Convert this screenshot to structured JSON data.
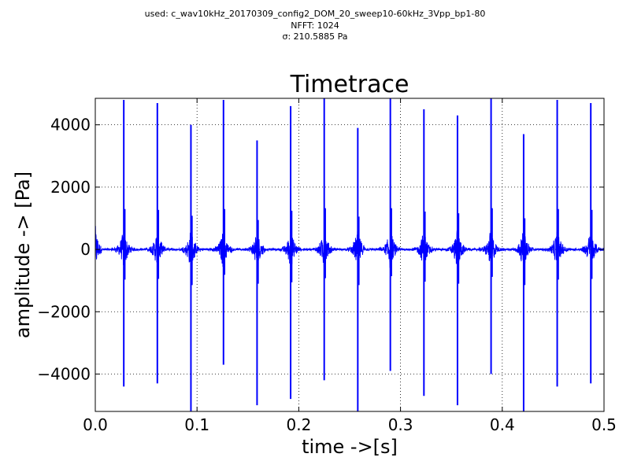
{
  "header": {
    "line1": "used: c_wav10kHz_20170309_config2_DOM_20_sweep10-60kHz_3Vpp_bp1-80",
    "line2": "NFFT: 1024",
    "line3": "σ: 210.5885 Pa"
  },
  "chart_data": {
    "type": "line",
    "title": "Timetrace",
    "xlabel": "time ->[s]",
    "ylabel": "amplitude -> [Pa]",
    "xlim": [
      0.0,
      0.5
    ],
    "ylim": [
      -5200,
      4850
    ],
    "grid": true,
    "line_color": "#0000ff",
    "xticks": [
      {
        "value": 0.0,
        "label": "0.0"
      },
      {
        "value": 0.1,
        "label": "0.1"
      },
      {
        "value": 0.2,
        "label": "0.2"
      },
      {
        "value": 0.3,
        "label": "0.3"
      },
      {
        "value": 0.4,
        "label": "0.4"
      },
      {
        "value": 0.5,
        "label": "0.5"
      }
    ],
    "yticks": [
      {
        "value": -4000,
        "label": "−4000"
      },
      {
        "value": -2000,
        "label": "−2000"
      },
      {
        "value": 0,
        "label": "0"
      },
      {
        "value": 2000,
        "label": "2000"
      },
      {
        "value": 4000,
        "label": "4000"
      }
    ],
    "pulses": [
      {
        "t": 0.028,
        "max": 4800,
        "min": -4400
      },
      {
        "t": 0.061,
        "max": 4700,
        "min": -4300
      },
      {
        "t": 0.094,
        "max": 4000,
        "min": -5200
      },
      {
        "t": 0.126,
        "max": 4800,
        "min": -3700
      },
      {
        "t": 0.159,
        "max": 3500,
        "min": -5000
      },
      {
        "t": 0.192,
        "max": 4600,
        "min": -4800
      },
      {
        "t": 0.225,
        "max": 4900,
        "min": -4200
      },
      {
        "t": 0.258,
        "max": 3900,
        "min": -5200
      },
      {
        "t": 0.29,
        "max": 4900,
        "min": -3900
      },
      {
        "t": 0.323,
        "max": 4500,
        "min": -4700
      },
      {
        "t": 0.356,
        "max": 4300,
        "min": -5000
      },
      {
        "t": 0.389,
        "max": 4900,
        "min": -4000
      },
      {
        "t": 0.421,
        "max": 3700,
        "min": -5200
      },
      {
        "t": 0.454,
        "max": 4800,
        "min": -4400
      },
      {
        "t": 0.487,
        "max": 4700,
        "min": -4300
      }
    ]
  }
}
